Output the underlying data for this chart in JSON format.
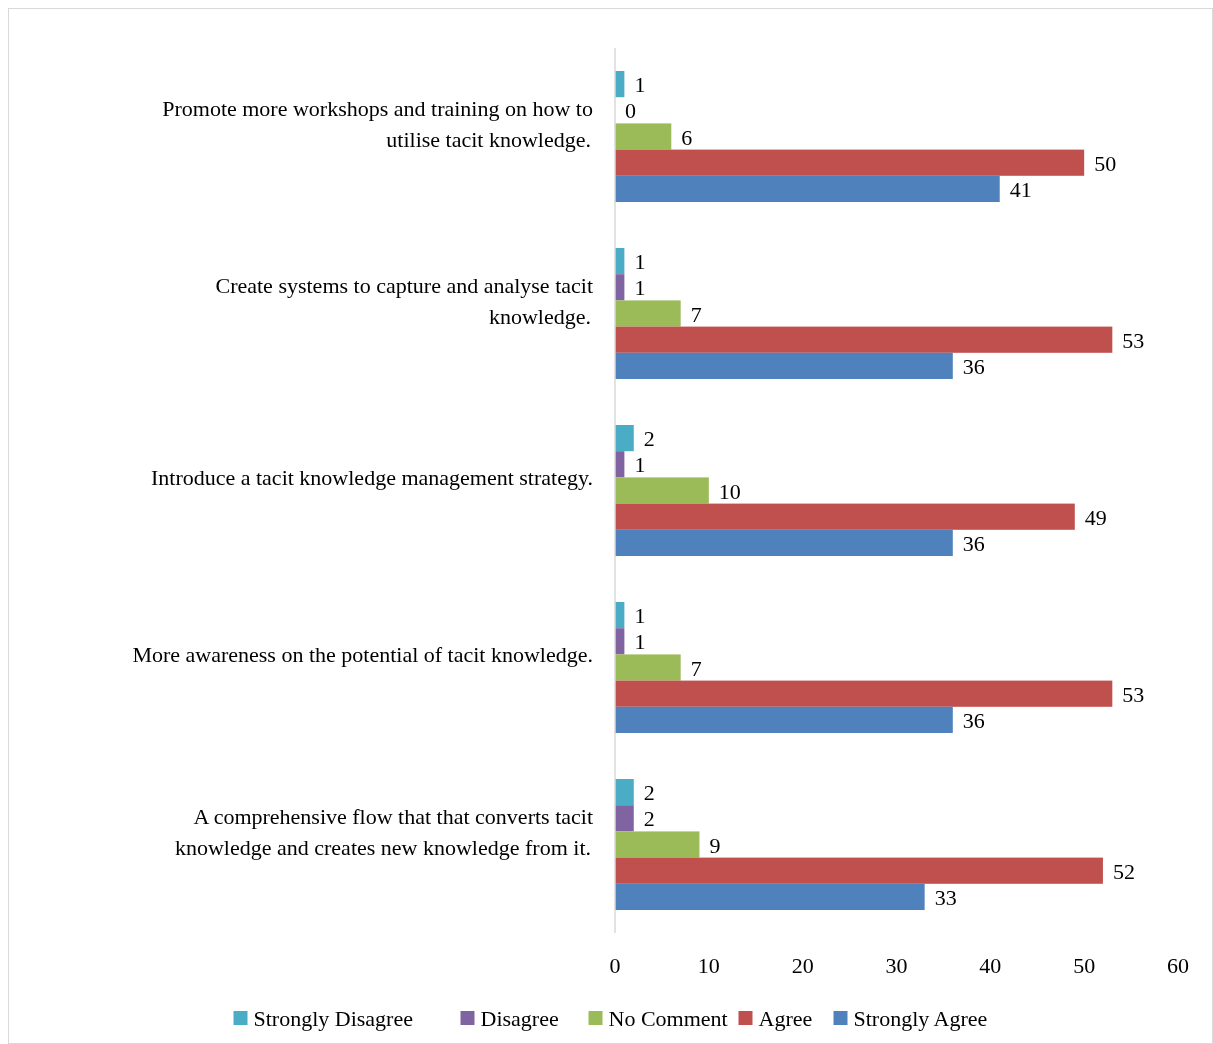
{
  "chart_data": {
    "type": "bar",
    "orientation": "horizontal",
    "categories": [
      "Promote more workshops and training on how to\nutilise tacit knowledge.",
      "Create systems to capture and analyse tacit\nknowledge.",
      "Introduce a tacit knowledge management strategy.",
      "More awareness on the potential of tacit knowledge.",
      "A comprehensive flow that that converts tacit\nknowledge and creates new knowledge from it."
    ],
    "series": [
      {
        "name": "Strongly Disagree",
        "color": "#4bacc6",
        "values": [
          1,
          1,
          2,
          1,
          2
        ]
      },
      {
        "name": "Disagree",
        "color": "#8064a2",
        "values": [
          0,
          1,
          1,
          1,
          2
        ]
      },
      {
        "name": "No Comment",
        "color": "#9bbb59",
        "values": [
          6,
          7,
          10,
          7,
          9
        ]
      },
      {
        "name": "Agree",
        "color": "#c0504d",
        "values": [
          50,
          53,
          49,
          53,
          52
        ]
      },
      {
        "name": "Strongly Agree",
        "color": "#4f81bd",
        "values": [
          41,
          36,
          36,
          36,
          33
        ]
      }
    ],
    "xlim": [
      0,
      60
    ],
    "xticks": [
      0,
      10,
      20,
      30,
      40,
      50,
      60
    ],
    "data_labels": true,
    "legend": "bottom",
    "grid": false
  }
}
